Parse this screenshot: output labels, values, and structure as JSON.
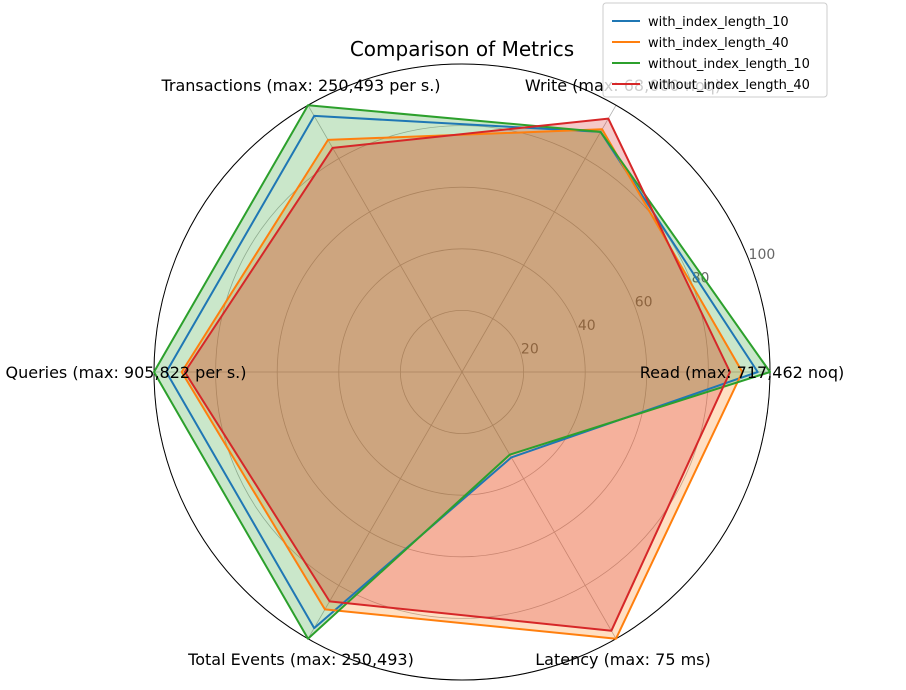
{
  "chart_data": {
    "type": "radar",
    "title": "Comparison of Metrics",
    "axes": [
      "Read (max: 717,462 noq)",
      "Write (max: 68,000 noq)",
      "Transactions (max: 250,493 per s.)",
      "Queries (max: 905,822 per s.)",
      "Total Events (max: 250,493)",
      "Latency (max: 75 ms)"
    ],
    "radial_ticks": [
      20,
      40,
      60,
      80,
      100
    ],
    "rlim": [
      0,
      100
    ],
    "grid": true,
    "legend_position": "top-right",
    "series": [
      {
        "name": "with_index_length_10",
        "color": "#1f77b4",
        "fill": false,
        "values": [
          96,
          90,
          96,
          96,
          96,
          32
        ]
      },
      {
        "name": "with_index_length_40",
        "color": "#ff7f0e",
        "fill": true,
        "values": [
          91,
          91,
          87,
          91,
          89,
          100
        ]
      },
      {
        "name": "without_index_length_10",
        "color": "#2ca02c",
        "fill": true,
        "values": [
          100,
          90,
          100,
          100,
          100,
          31
        ]
      },
      {
        "name": "without_index_length_40",
        "color": "#d62728",
        "fill": true,
        "values": [
          87,
          95,
          84,
          90,
          86,
          97
        ]
      }
    ]
  }
}
